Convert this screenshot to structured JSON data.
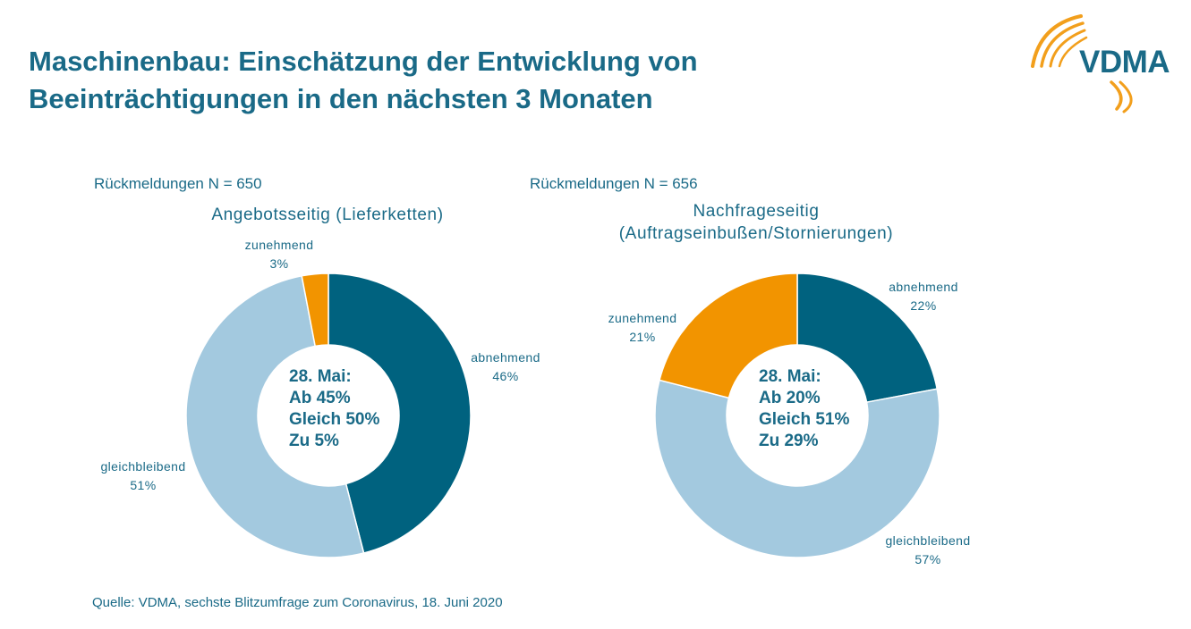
{
  "title": {
    "line1": "Maschinenbau: Einschätzung der Entwicklung von",
    "line2": "Beeinträchtigungen in den nächsten 3 Monaten"
  },
  "logo": {
    "text": "VDMA"
  },
  "colors": {
    "abnehmend": "#00627f",
    "gleichbleibend": "#a3c9df",
    "zunehmend": "#f29400",
    "text": "#1a6a87"
  },
  "chart_data": [
    {
      "type": "pie",
      "style": "donut",
      "n_label": "Rückmeldungen N = 650",
      "title_lines": [
        "Angebotsseitig (Lieferketten)"
      ],
      "slices": [
        {
          "key": "abnehmend",
          "label": "abnehmend",
          "value": 46,
          "value_label": "46%"
        },
        {
          "key": "gleichbleibend",
          "label": "gleichbleibend",
          "value": 51,
          "value_label": "51%"
        },
        {
          "key": "zunehmend",
          "label": "zunehmend",
          "value": 3,
          "value_label": "3%"
        }
      ],
      "center_lines": [
        "28. Mai:",
        "Ab 45%",
        "Gleich 50%",
        "Zu 5%"
      ]
    },
    {
      "type": "pie",
      "style": "donut",
      "n_label": "Rückmeldungen N = 656",
      "title_lines": [
        "Nachfrageseitig",
        "(Auftragseinbußen/Stornierungen)"
      ],
      "slices": [
        {
          "key": "abnehmend",
          "label": "abnehmend",
          "value": 22,
          "value_label": "22%"
        },
        {
          "key": "gleichbleibend",
          "label": "gleichbleibend",
          "value": 57,
          "value_label": "57%"
        },
        {
          "key": "zunehmend",
          "label": "zunehmend",
          "value": 21,
          "value_label": "21%"
        }
      ],
      "center_lines": [
        "28. Mai:",
        "Ab 20%",
        "Gleich 51%",
        "Zu 29%"
      ]
    }
  ],
  "source": "Quelle: VDMA, sechste Blitzumfrage zum Coronavirus, 18. Juni 2020"
}
